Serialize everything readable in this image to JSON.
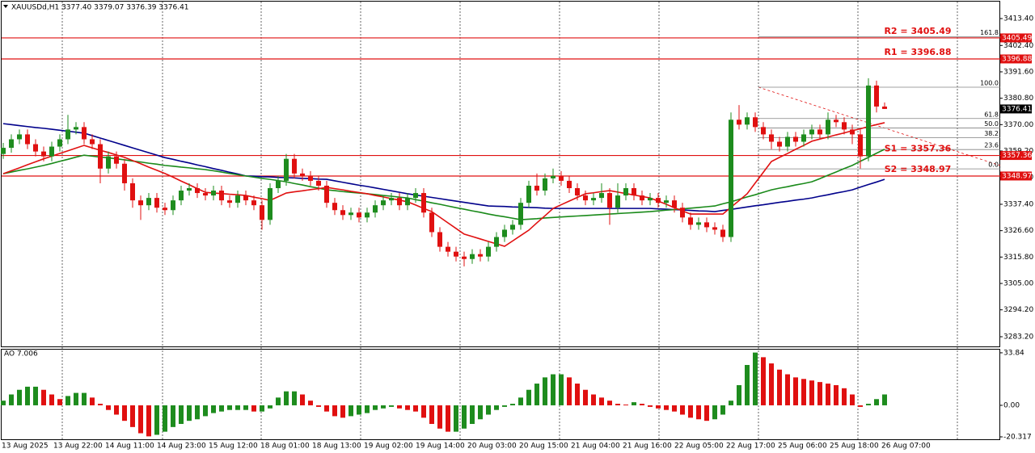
{
  "chart_data": {
    "type": "candlestick",
    "title": "XAUUSDd,H1  3377.40 3379.07 3376.39 3376.41",
    "time_labels": [
      "13 Aug 2025",
      "13 Aug 22:00",
      "14 Aug 11:00",
      "14 Aug 23:00",
      "15 Aug 12:00",
      "18 Aug 01:00",
      "18 Aug 13:00",
      "19 Aug 02:00",
      "19 Aug 14:00",
      "20 Aug 03:00",
      "20 Aug 15:00",
      "21 Aug 04:00",
      "21 Aug 16:00",
      "22 Aug 05:00",
      "22 Aug 17:00",
      "25 Aug 06:00",
      "25 Aug 18:00",
      "26 Aug 07:00"
    ],
    "open": [
      3358,
      3360.5,
      3364,
      3366,
      3362,
      3359,
      3357,
      3361,
      3364,
      3368,
      3369,
      3364,
      3362,
      3352,
      3357,
      3354,
      3346,
      3339,
      3337,
      3340,
      3336,
      3335,
      3339,
      3343,
      3344,
      3342,
      3341,
      3343,
      3339,
      3338,
      3341,
      3339,
      3337,
      3331,
      3344,
      3347,
      3356,
      3350,
      3349,
      3347,
      3345,
      3338,
      3335,
      3333,
      3334,
      3332,
      3334,
      3337,
      3339,
      3340,
      3337,
      3340,
      3342,
      3334,
      3326,
      3320,
      3318,
      3316,
      3315,
      3317,
      3316,
      3320,
      3324,
      3327,
      3329,
      3338,
      3345,
      3343,
      3348,
      3349,
      3347,
      3344,
      3341,
      3339,
      3340,
      3342,
      3336,
      3341,
      3344,
      3341,
      3339,
      3340,
      3338,
      3339,
      3336,
      3332,
      3329,
      3330,
      3328,
      3327,
      3324,
      3372,
      3370,
      3373,
      3369,
      3366,
      3363,
      3361,
      3365,
      3363,
      3366,
      3368,
      3366,
      3372,
      3371,
      3368,
      3366,
      3357,
      3386,
      3377.4
    ],
    "high": [
      3362.5,
      3366,
      3368,
      3368,
      3364,
      3361,
      3363,
      3366,
      3374,
      3371,
      3371,
      3366,
      3364,
      3359,
      3359,
      3356,
      3348,
      3341,
      3342,
      3342,
      3338,
      3341,
      3345,
      3346,
      3346,
      3344,
      3345,
      3345,
      3341,
      3343,
      3343,
      3341,
      3339,
      3346,
      3349,
      3358,
      3358,
      3352,
      3351,
      3349,
      3347,
      3340,
      3337,
      3336,
      3336,
      3336,
      3339,
      3341,
      3342,
      3342,
      3342,
      3344,
      3344,
      3336,
      3328,
      3322,
      3320,
      3318,
      3319,
      3319,
      3322,
      3326,
      3329,
      3331,
      3340,
      3347,
      3350,
      3350,
      3352,
      3351,
      3349,
      3346,
      3343,
      3342,
      3346,
      3344,
      3346,
      3346,
      3346,
      3343,
      3342,
      3342,
      3341,
      3341,
      3338,
      3334,
      3332,
      3332,
      3330,
      3329,
      3375,
      3378,
      3375,
      3375,
      3371,
      3368,
      3365,
      3367,
      3367,
      3368,
      3370,
      3370,
      3375,
      3374,
      3373,
      3370,
      3368,
      3389,
      3388,
      3379.07
    ],
    "low": [
      3356,
      3358.5,
      3362,
      3360,
      3357,
      3355,
      3355,
      3359,
      3362,
      3366,
      3362,
      3360,
      3346,
      3350,
      3352,
      3343,
      3336,
      3331,
      3335,
      3334,
      3333,
      3333,
      3337,
      3341,
      3340,
      3339,
      3339,
      3337,
      3336,
      3336,
      3337,
      3335,
      3327,
      3329,
      3342,
      3345,
      3348,
      3347,
      3345,
      3343,
      3336,
      3333,
      3331,
      3331,
      3330,
      3330,
      3332,
      3335,
      3337,
      3335,
      3335,
      3338,
      3332,
      3324,
      3318,
      3316,
      3314,
      3312,
      3313,
      3314,
      3314,
      3318,
      3322,
      3325,
      3327,
      3336,
      3341,
      3341,
      3346,
      3345,
      3342,
      3339,
      3337,
      3337,
      3338,
      3329,
      3334,
      3339,
      3339,
      3337,
      3337,
      3336,
      3336,
      3334,
      3330,
      3327,
      3327,
      3326,
      3325,
      3322,
      3322,
      3368,
      3368,
      3367,
      3364,
      3360,
      3359,
      3359,
      3361,
      3361,
      3364,
      3364,
      3364,
      3369,
      3366,
      3362,
      3352,
      3355,
      3375,
      3376.39
    ],
    "close": [
      3360.5,
      3364,
      3366,
      3362,
      3359,
      3357,
      3361,
      3364,
      3368,
      3369,
      3364,
      3362,
      3352,
      3357,
      3354,
      3346,
      3339,
      3337,
      3340,
      3336,
      3335,
      3339,
      3343,
      3344,
      3342,
      3341,
      3343,
      3339,
      3338,
      3341,
      3339,
      3337,
      3331,
      3344,
      3347,
      3356,
      3350,
      3349,
      3347,
      3345,
      3338,
      3335,
      3333,
      3334,
      3332,
      3334,
      3337,
      3339,
      3340,
      3337,
      3340,
      3342,
      3334,
      3326,
      3320,
      3318,
      3316,
      3315,
      3317,
      3316,
      3320,
      3324,
      3327,
      3329,
      3338,
      3345,
      3343,
      3348,
      3349,
      3347,
      3344,
      3341,
      3339,
      3340,
      3342,
      3336,
      3341,
      3344,
      3341,
      3339,
      3340,
      3338,
      3339,
      3336,
      3332,
      3329,
      3330,
      3328,
      3327,
      3324,
      3372,
      3370,
      3373,
      3369,
      3366,
      3363,
      3361,
      3365,
      3363,
      3366,
      3368,
      3366,
      3372,
      3371,
      3368,
      3366,
      3357,
      3386,
      3377.4,
      3376.41
    ],
    "up_color": "#1e8c1e",
    "down_color": "#e01010",
    "series": [
      {
        "color": "#00008b",
        "values": [
          3370.4,
          3370.0,
          3369.6,
          3369.2,
          3368.8,
          3368.5,
          3368.1,
          3367.7,
          3367.3,
          3366.9,
          3366.5,
          3365.5,
          3364.5,
          3363.5,
          3362.5,
          3361.5,
          3360.5,
          3359.5,
          3358.5,
          3357.5,
          3356.5,
          3355.8,
          3355.0,
          3354.3,
          3353.5,
          3352.8,
          3352.0,
          3351.3,
          3350.5,
          3349.8,
          3349.0,
          3348.9,
          3348.7,
          3348.6,
          3348.4,
          3348.3,
          3348.2,
          3348.0,
          3347.9,
          3347.7,
          3347.6,
          3347.0,
          3346.4,
          3345.8,
          3345.2,
          3344.7,
          3344.1,
          3343.5,
          3342.9,
          3342.3,
          3341.7,
          3341.2,
          3340.7,
          3340.2,
          3339.7,
          3339.2,
          3338.7,
          3338.2,
          3337.7,
          3337.2,
          3336.7,
          3336.6,
          3336.5,
          3336.3,
          3336.2,
          3336.1,
          3336.0,
          3335.8,
          3335.7,
          3335.7,
          3335.7,
          3335.7,
          3335.7,
          3335.7,
          3335.7,
          3335.7,
          3335.7,
          3335.7,
          3335.7,
          3335.7,
          3335.7,
          3335.5,
          3335.4,
          3335.2,
          3335.1,
          3334.9,
          3334.7,
          3334.6,
          3334.4,
          3334.9,
          3335.3,
          3335.8,
          3336.3,
          3336.8,
          3337.2,
          3337.7,
          3338.2,
          3338.6,
          3339.1,
          3339.5,
          3340.0,
          3340.7,
          3341.3,
          3342.0,
          3342.6,
          3343.3,
          3344.4,
          3345.5,
          3346.5,
          3347.6
        ]
      },
      {
        "color": "#1a8a1a",
        "values": [
          3349.9,
          3350.6,
          3351.3,
          3351.9,
          3352.6,
          3353.3,
          3354.1,
          3355.0,
          3355.8,
          3356.7,
          3357.5,
          3357.1,
          3356.7,
          3356.4,
          3356.0,
          3355.6,
          3355.1,
          3354.7,
          3354.2,
          3353.8,
          3353.3,
          3353.0,
          3352.6,
          3352.3,
          3351.9,
          3351.6,
          3351.1,
          3350.6,
          3350.0,
          3349.5,
          3349.0,
          3348.5,
          3348.0,
          3347.6,
          3347.1,
          3346.6,
          3345.9,
          3345.3,
          3344.6,
          3344.0,
          3343.3,
          3343.0,
          3342.6,
          3342.3,
          3342.0,
          3341.7,
          3341.4,
          3341.0,
          3340.7,
          3340.3,
          3340.0,
          3339.3,
          3338.7,
          3338.0,
          3337.4,
          3336.7,
          3336.0,
          3335.4,
          3334.7,
          3334.1,
          3333.4,
          3332.8,
          3332.3,
          3331.7,
          3331.1,
          3331.3,
          3331.5,
          3331.8,
          3332.0,
          3332.2,
          3332.4,
          3332.6,
          3332.8,
          3333.0,
          3333.2,
          3333.4,
          3333.6,
          3333.8,
          3334.0,
          3334.2,
          3334.4,
          3334.7,
          3335.0,
          3335.2,
          3335.5,
          3335.8,
          3336.1,
          3336.4,
          3336.7,
          3337.6,
          3338.4,
          3339.4,
          3340.4,
          3341.3,
          3342.3,
          3343.3,
          3344.0,
          3344.6,
          3345.3,
          3345.9,
          3346.6,
          3347.9,
          3349.3,
          3350.6,
          3352.0,
          3353.3,
          3355.0,
          3356.6,
          3358.3,
          3359.9
        ]
      },
      {
        "color": "#e01010",
        "values": [
          3349.9,
          3351.1,
          3352.3,
          3353.6,
          3354.8,
          3356.0,
          3357.1,
          3358.2,
          3359.3,
          3360.4,
          3361.5,
          3360.5,
          3359.5,
          3358.6,
          3357.6,
          3356.6,
          3355.3,
          3354.0,
          3352.6,
          3351.3,
          3350.0,
          3348.5,
          3346.9,
          3345.4,
          3343.8,
          3342.3,
          3342.0,
          3341.8,
          3341.5,
          3341.3,
          3341.0,
          3340.3,
          3339.7,
          3339.0,
          3340.5,
          3342.0,
          3342.5,
          3342.9,
          3343.4,
          3343.8,
          3344.3,
          3343.8,
          3343.3,
          3342.7,
          3342.2,
          3341.7,
          3341.0,
          3340.4,
          3339.7,
          3339.1,
          3338.4,
          3337.1,
          3335.7,
          3334.4,
          3332.1,
          3329.8,
          3327.5,
          3325.2,
          3324.2,
          3323.2,
          3322.2,
          3321.2,
          3320.2,
          3322.4,
          3324.6,
          3326.8,
          3329.8,
          3332.7,
          3335.7,
          3337.2,
          3338.7,
          3340.2,
          3341.7,
          3342.1,
          3342.6,
          3343.0,
          3342.4,
          3341.8,
          3341.2,
          3340.6,
          3340.0,
          3338.7,
          3337.4,
          3336.0,
          3334.7,
          3333.4,
          3333.4,
          3333.4,
          3333.4,
          3333.4,
          3336.2,
          3338.9,
          3341.7,
          3346.1,
          3350.5,
          3354.9,
          3356.6,
          3358.2,
          3359.9,
          3361.5,
          3363.2,
          3364.1,
          3364.9,
          3365.8,
          3366.6,
          3367.5,
          3368.3,
          3369.2,
          3370.0,
          3370.8
        ]
      }
    ],
    "ylim": [
      3278.9,
      3421.0
    ],
    "yticks": [
      {
        "value": 3413.4,
        "label": "3413.40"
      },
      {
        "value": 3402.4,
        "label": "3402.40"
      },
      {
        "value": 3391.6,
        "label": "3391.60"
      },
      {
        "value": 3380.8,
        "label": "3380.80"
      },
      {
        "value": 3370,
        "label": "3370.00"
      },
      {
        "value": 3359.2,
        "label": "3359.20"
      },
      {
        "value": 3348.4,
        "label": "3348.40"
      },
      {
        "value": 3337.4,
        "label": "3337.40"
      },
      {
        "value": 3326.6,
        "label": "3326.60"
      },
      {
        "value": 3315.8,
        "label": "3315.80"
      },
      {
        "value": 3305,
        "label": "3305.00"
      },
      {
        "value": 3294.2,
        "label": "3294.20"
      },
      {
        "value": 3283.2,
        "label": "3283.20"
      }
    ],
    "levels": [
      {
        "label": "R2 = 3405.49",
        "price": 3405.49
      },
      {
        "label": "R1 = 3396.88",
        "price": 3396.88
      },
      {
        "label": "S1 = 3357.36",
        "price": 3357.36
      },
      {
        "label": "S2 = 3348.97",
        "price": 3348.97
      }
    ],
    "level_color": "#e01010",
    "fib_levels": [
      {
        "label": "161.8",
        "price": 3405.9
      },
      {
        "label": "100.0",
        "price": 3385.3
      },
      {
        "label": "61.8",
        "price": 3372.5
      },
      {
        "label": "50.0",
        "price": 3368.6
      },
      {
        "label": "38.2",
        "price": 3364.7
      },
      {
        "label": "23.6",
        "price": 3359.8
      },
      {
        "label": "0.0",
        "price": 3351.9
      }
    ],
    "last_price": 3376.41,
    "indicator": {
      "type": "bar",
      "title": "AO 7.006",
      "values": [
        3,
        7,
        10,
        12,
        12,
        10,
        7,
        4,
        6,
        8,
        8,
        5,
        1,
        -3,
        -6,
        -10,
        -14,
        -18,
        -20,
        -19,
        -17,
        -14,
        -12,
        -10,
        -9,
        -7,
        -5,
        -4,
        -3,
        -3,
        -3,
        -4,
        -4,
        -2,
        5,
        9,
        9,
        7,
        3,
        -1,
        -4,
        -7,
        -8,
        -7,
        -6,
        -5,
        -3,
        -2,
        -1,
        -2,
        -3,
        -4,
        -8,
        -12,
        -15,
        -17,
        -17,
        -15,
        -12,
        -9,
        -6,
        -3,
        -1,
        1,
        5,
        10,
        14,
        18,
        20,
        20,
        18,
        14,
        10,
        7,
        5,
        3,
        1,
        0.5,
        2,
        1,
        -1,
        -2,
        -3,
        -4,
        -6,
        -8,
        -9,
        -10,
        -9,
        -6,
        3,
        13,
        26,
        34,
        31,
        27,
        23,
        20,
        18,
        17,
        16,
        15,
        14,
        13,
        11,
        7,
        -1,
        1,
        4,
        7.006
      ],
      "up_color": "#1e8c1e",
      "down_color": "#e01010",
      "ylim": [
        -22.4,
        36.4
      ],
      "yticks": [
        33.84,
        {
          "value": 0,
          "label": "0.00"
        },
        -20.317
      ]
    }
  }
}
